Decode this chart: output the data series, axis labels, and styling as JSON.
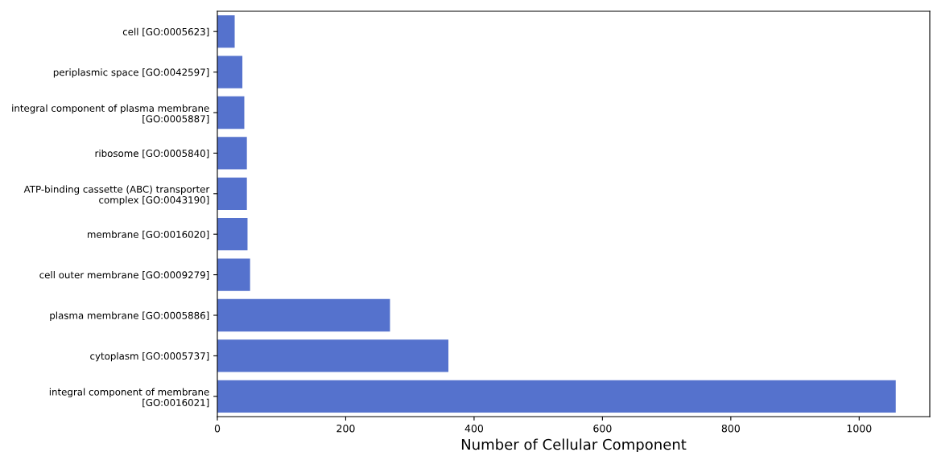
{
  "chart_data": {
    "type": "bar",
    "orientation": "horizontal",
    "xlabel": "Number of Cellular Component",
    "categories": [
      "cell [GO:0005623]",
      "periplasmic space [GO:0042597]",
      "integral component of plasma membrane\n[GO:0005887]",
      "ribosome [GO:0005840]",
      "ATP-binding cassette (ABC) transporter\ncomplex [GO:0043190]",
      "membrane [GO:0016020]",
      "cell outer membrane [GO:0009279]",
      "plasma membrane [GO:0005886]",
      "cytoplasm [GO:0005737]",
      "integral component of membrane\n[GO:0016021]"
    ],
    "values": [
      27,
      39,
      42,
      46,
      46,
      47,
      51,
      269,
      360,
      1057
    ],
    "color": "#5572cd",
    "xlim": [
      0,
      1110
    ],
    "xticks": [
      0,
      200,
      400,
      600,
      800,
      1000
    ],
    "grid": false
  }
}
